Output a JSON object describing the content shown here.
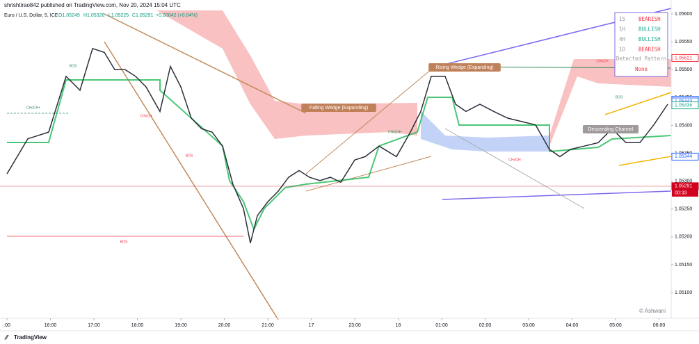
{
  "header": {
    "author_line": "shrishtirao842 published on TradingView.com, Nov 20, 2024 15:04 UTC",
    "symbol": "Euro / U.S. Dollar, 5, ICE",
    "open": "O1.05249",
    "high": "H1.05326",
    "low": "L1.05225",
    "close": "C1.05291",
    "change": "+0.00042 (+0.04%)"
  },
  "chart_data": {
    "type": "line",
    "color": "#2a2e39",
    "grid": false,
    "xlim": [
      -0.16,
      15.28
    ],
    "xticks": [
      {
        "value": 0,
        "label": ":00"
      },
      {
        "value": 1,
        "label": "16:00"
      },
      {
        "value": 2,
        "label": "17:00"
      },
      {
        "value": 3,
        "label": "18:00"
      },
      {
        "value": 4,
        "label": "19:00"
      },
      {
        "value": 5,
        "label": "20:00"
      },
      {
        "value": 6,
        "label": "21:00"
      },
      {
        "value": 7,
        "label": "17"
      },
      {
        "value": 8,
        "label": "23:00"
      },
      {
        "value": 9,
        "label": "18"
      },
      {
        "value": 10,
        "label": "01:00"
      },
      {
        "value": 11,
        "label": "02:00"
      },
      {
        "value": 12,
        "label": "03:00"
      },
      {
        "value": 13,
        "label": "04:00"
      },
      {
        "value": 14,
        "label": "05:00"
      },
      {
        "value": 15,
        "label": "06:00"
      }
    ],
    "ylim": [
      1.05054,
      1.05625
    ],
    "yticks": [
      {
        "value": 1.051,
        "label": "1.05100"
      },
      {
        "value": 1.0515,
        "label": "1.05150"
      },
      {
        "value": 1.052,
        "label": "1.05200"
      },
      {
        "value": 1.0525,
        "label": "1.05250"
      },
      {
        "value": 1.053,
        "label": "1.05300"
      },
      {
        "value": 1.0535,
        "label": "1.05350"
      },
      {
        "value": 1.054,
        "label": "1.05400"
      },
      {
        "value": 1.0545,
        "label": "1.05450"
      },
      {
        "value": 1.055,
        "label": "1.05500"
      },
      {
        "value": 1.0555,
        "label": "1.05550"
      },
      {
        "value": 1.056,
        "label": "1.05600"
      }
    ],
    "series": [
      {
        "color": "#2a2e39",
        "x": [
          0,
          0.48,
          0.96,
          1.36,
          1.68,
          1.97,
          2.24,
          2.48,
          2.72,
          2.96,
          3.2,
          3.52,
          3.76,
          4.0,
          4.24,
          4.48,
          4.72,
          4.96,
          5.2,
          5.44,
          5.6,
          5.76,
          6.0,
          6.24,
          6.48,
          6.72,
          6.96,
          7.2,
          7.44,
          7.68,
          8.0,
          8.24,
          8.56,
          8.96,
          9.28,
          9.52,
          9.76,
          10.08,
          10.32,
          10.56,
          10.88,
          11.2,
          11.52,
          11.84,
          12.16,
          12.48,
          12.72,
          12.96,
          13.28,
          13.6,
          13.92,
          14.24,
          14.56,
          14.88,
          15.2
        ],
        "values": [
          1.05313,
          1.05376,
          1.05388,
          1.05488,
          1.05463,
          1.05538,
          1.05531,
          1.055,
          1.055,
          1.05488,
          1.05469,
          1.05425,
          1.05506,
          1.05469,
          1.05413,
          1.05394,
          1.05388,
          1.05363,
          1.05294,
          1.05251,
          1.05189,
          1.05238,
          1.05263,
          1.05282,
          1.05307,
          1.05319,
          1.05307,
          1.05301,
          1.05307,
          1.05298,
          1.05338,
          1.05344,
          1.05363,
          1.05344,
          1.05388,
          1.05425,
          1.05488,
          1.05488,
          1.05438,
          1.05425,
          1.05438,
          1.05425,
          1.05413,
          1.05407,
          1.05401,
          1.05357,
          1.05344,
          1.05357,
          1.05363,
          1.05369,
          1.05394,
          1.05369,
          1.05369,
          1.05401,
          1.05438
        ]
      }
    ],
    "price_tags": [
      {
        "value": 1.05521,
        "color": "#f23645",
        "filled": false
      },
      {
        "value": 1.05446,
        "color": "#22ab94",
        "filled": false
      },
      {
        "value": 1.05446,
        "color": "#2962ff",
        "filled": false
      },
      {
        "value": 1.05443,
        "color": "#2962ff",
        "filled": false
      },
      {
        "value": 1.05436,
        "color": "#22ab94",
        "filled": false
      },
      {
        "value": 1.05344,
        "color": "#2962ff",
        "filled": false
      },
      {
        "value": 1.05291,
        "color": "#d1001f",
        "filled": true
      }
    ],
    "countdown": "00:33",
    "annotations": [
      "BOS",
      "CHoCH+",
      "CHoCH",
      "BOS",
      "BOS",
      "Falling Wedge (Expanding)",
      "Rising Wedge (Expanding)",
      "CHoCH+",
      "CHoCH",
      "CHoCH",
      "Descending Channel",
      "BOS"
    ]
  },
  "trend_table": {
    "rows": [
      [
        "15",
        "BEARISH"
      ],
      [
        "1H",
        "BULLISH"
      ],
      [
        "4H",
        "BULLISH"
      ],
      [
        "1D",
        "BEARISH"
      ]
    ],
    "pattern_title": "Detected Pattern",
    "pattern": "None"
  },
  "watermark": "© Ashwani",
  "footer": "TradingView"
}
